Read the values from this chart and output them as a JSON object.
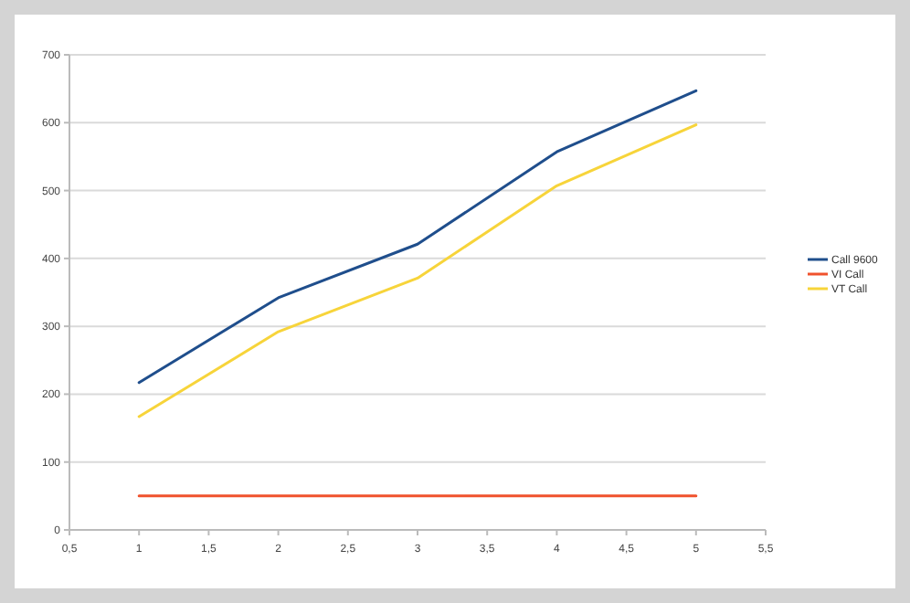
{
  "chart_data": {
    "type": "line",
    "x": [
      1,
      2,
      3,
      4,
      5
    ],
    "series": [
      {
        "name": "Call 9600",
        "color": "#1f4e8c",
        "values": [
          217,
          342,
          421,
          557,
          647
        ]
      },
      {
        "name": "VI Call",
        "color": "#f0522d",
        "values": [
          50,
          50,
          50,
          50,
          50
        ]
      },
      {
        "name": "VT Call",
        "color": "#f7d43a",
        "values": [
          167,
          292,
          371,
          507,
          597
        ]
      }
    ],
    "xlim": [
      0.5,
      5.5
    ],
    "xticks": [
      {
        "value": 0.5,
        "label": "0,5"
      },
      1,
      {
        "value": 1.5,
        "label": "1,5"
      },
      2,
      {
        "value": 2.5,
        "label": "2,5"
      },
      3,
      {
        "value": 3.5,
        "label": "3,5"
      },
      4,
      {
        "value": 4.5,
        "label": "4,5"
      },
      5,
      {
        "value": 5.5,
        "label": "5,5"
      }
    ],
    "ylim": [
      0,
      700
    ],
    "yticks": [
      0,
      100,
      200,
      300,
      400,
      500,
      600,
      700
    ],
    "grid": "y",
    "legend": "right",
    "marker": "none",
    "line_style": "solid"
  }
}
